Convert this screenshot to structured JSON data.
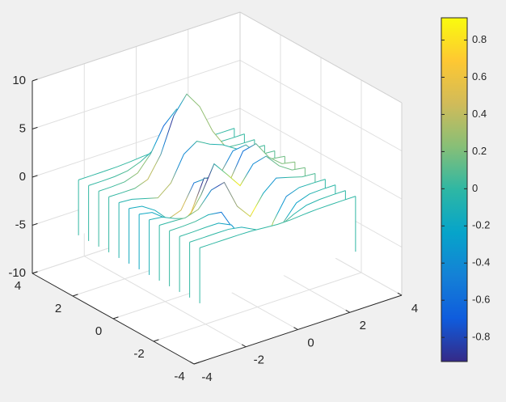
{
  "chart_data": {
    "type": "waterfall",
    "x": [
      -3,
      -2.5,
      -2,
      -1.5,
      -1,
      -0.5,
      0,
      0.5,
      1,
      1.5,
      2,
      2.5,
      3
    ],
    "series": [
      {
        "y": -3,
        "values": [
          0,
          0,
          0,
          0,
          -0.03,
          -0.14,
          -0.24,
          -0.22,
          -0.11,
          -0.03,
          -0.01,
          0,
          0
        ]
      },
      {
        "y": -2.5,
        "values": [
          0,
          0,
          0.01,
          0,
          -0.23,
          -0.91,
          -1.57,
          -1.41,
          -0.69,
          -0.18,
          -0.03,
          0,
          0
        ]
      },
      {
        "y": -2,
        "values": [
          0,
          0.01,
          0.05,
          0.05,
          -0.59,
          -2.63,
          -4.75,
          -4.34,
          -2.1,
          -0.53,
          -0.06,
          0,
          0
        ]
      },
      {
        "y": -1.5,
        "values": [
          0,
          0.01,
          0.08,
          0.33,
          0.15,
          -2.19,
          -5.68,
          -5.76,
          -2.63,
          -0.44,
          0.04,
          0.03,
          0
        ]
      },
      {
        "y": -1,
        "values": [
          -0.01,
          -0.06,
          -0.13,
          0.3,
          1.86,
          2.22,
          -0.72,
          -2.22,
          -0.27,
          0.88,
          0.5,
          0.11,
          0.01
        ]
      },
      {
        "y": -0.5,
        "values": [
          -0.03,
          -0.2,
          -0.8,
          -1.21,
          0.8,
          3.55,
          2,
          0.39,
          2.2,
          2.56,
          1.12,
          0.24,
          0.03
        ]
      },
      {
        "y": 0,
        "values": [
          -0.04,
          -0.3,
          -1.33,
          -2.77,
          -1.65,
          1.48,
          0.98,
          0.37,
          2.94,
          3.27,
          1.41,
          0.3,
          0.03
        ]
      },
      {
        "y": 0.5,
        "values": [
          -0.03,
          -0.25,
          -1.12,
          -2.49,
          -2,
          0.39,
          0.46,
          0.37,
          2.38,
          2.56,
          1.09,
          0.23,
          0.03
        ]
      },
      {
        "y": 1,
        "values": [
          -0.01,
          -0.11,
          -0.48,
          -0.86,
          0.23,
          2.79,
          3.69,
          2.94,
          2.43,
          1.58,
          0.58,
          0.11,
          0.01
        ]
      },
      {
        "y": 1.5,
        "values": [
          0,
          -0.02,
          -0.01,
          0.48,
          2.61,
          6.2,
          8,
          6.25,
          3.25,
          1.18,
          0.29,
          0.05,
          0
        ]
      },
      {
        "y": 2,
        "values": [
          0,
          0.01,
          0.08,
          0.55,
          2.1,
          4.55,
          5.85,
          4.56,
          2.21,
          0.68,
          0.13,
          0.02,
          0
        ]
      },
      {
        "y": 2.5,
        "values": [
          0,
          0,
          0.03,
          0.19,
          0.69,
          1.47,
          1.88,
          1.47,
          0.7,
          0.21,
          0.04,
          0,
          0
        ]
      },
      {
        "y": 3,
        "values": [
          0,
          0,
          0.01,
          0.03,
          0.11,
          0.23,
          0.3,
          0.23,
          0.11,
          0.03,
          0.01,
          0,
          0
        ]
      }
    ],
    "xlim": [
      -4,
      4
    ],
    "xticks": [
      -4,
      -2,
      0,
      2,
      4
    ],
    "ylim": [
      -4,
      4
    ],
    "yticks": [
      -4,
      -2,
      0,
      2,
      4
    ],
    "zlim": [
      -10,
      10
    ],
    "zticks": [
      -10,
      -5,
      0,
      5,
      10
    ],
    "grid": true,
    "colormap": [
      "#352a87",
      "#0f5cdd",
      "#1481d6",
      "#06a4ca",
      "#2eb7a4",
      "#87bf77",
      "#d1bb59",
      "#fec832",
      "#f9fb0e"
    ],
    "colorbar": {
      "clim": [
        -0.93,
        0.92
      ],
      "ticks": [
        -0.8,
        -0.6,
        -0.4,
        -0.2,
        0,
        0.2,
        0.4,
        0.6,
        0.8
      ]
    }
  }
}
